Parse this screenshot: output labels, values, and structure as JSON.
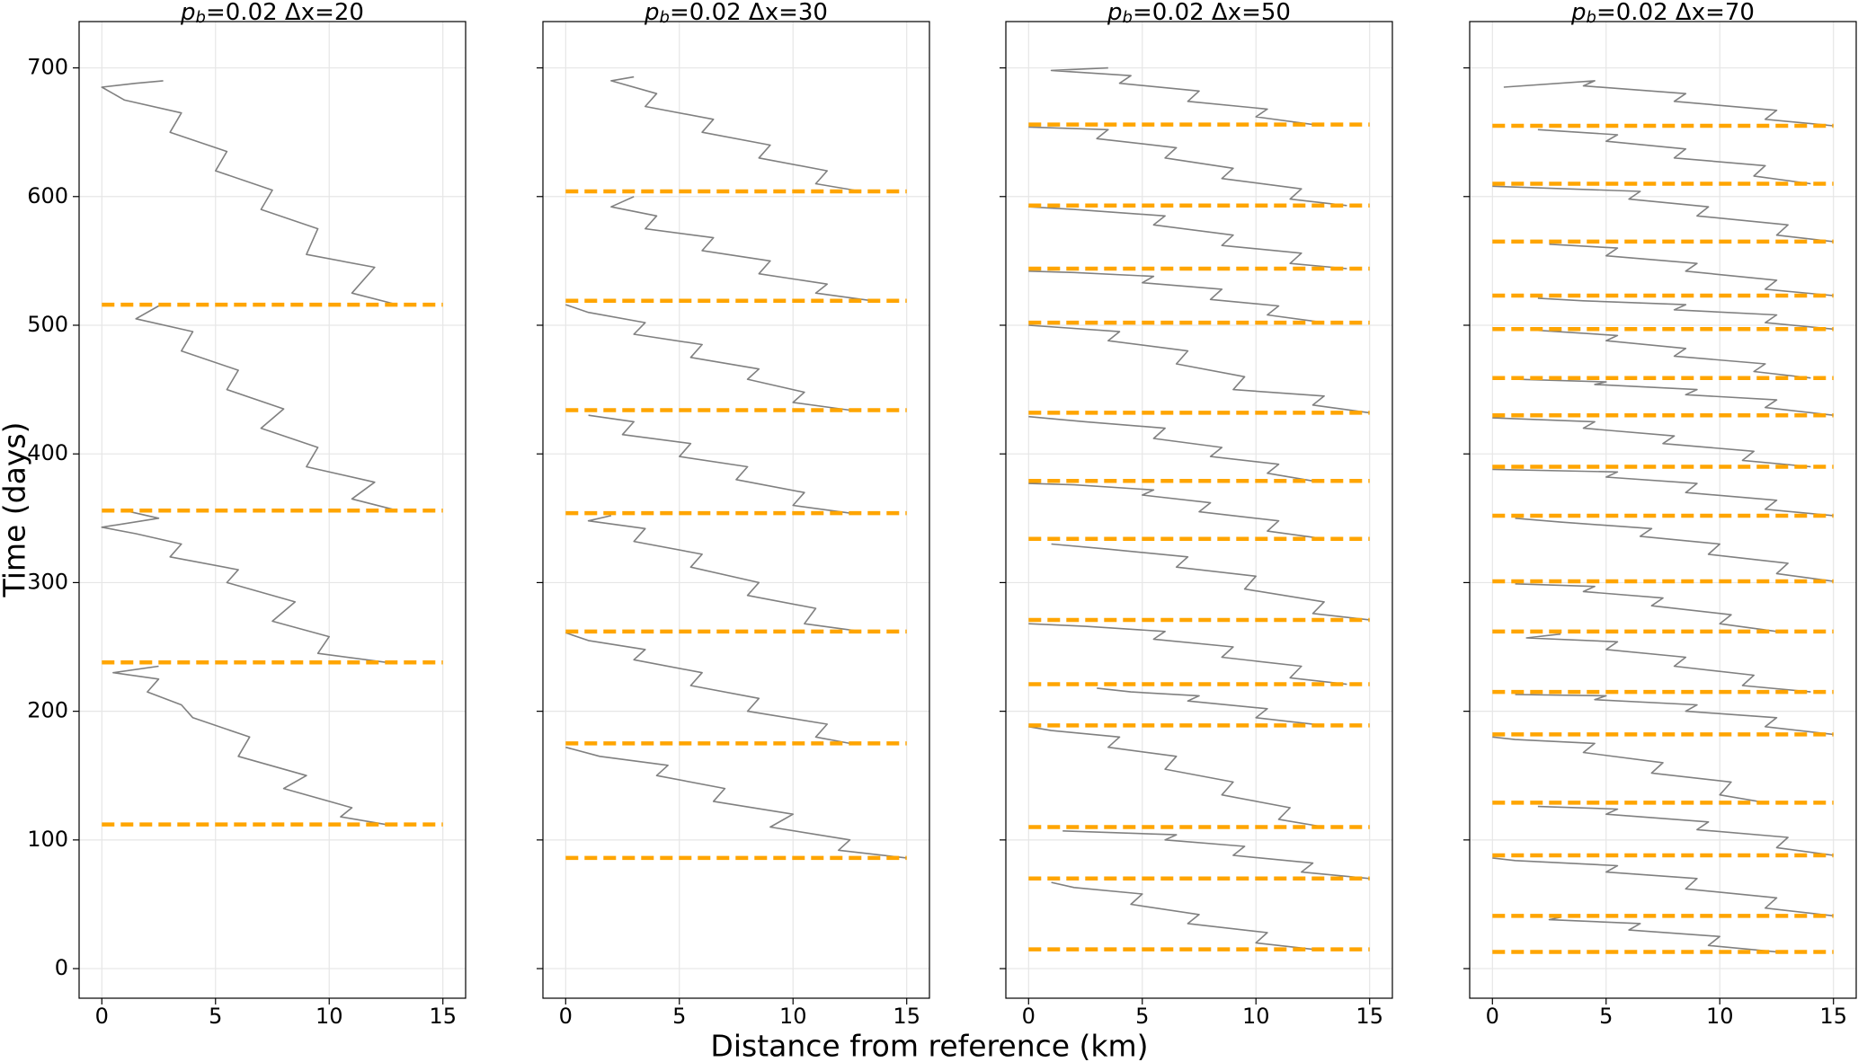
{
  "figure": {
    "xlabel": "Distance from reference (km)",
    "ylabel": "Time (days)"
  },
  "chart_data": [
    {
      "type": "line",
      "title": {
        "symbol": "p",
        "subscript": "b",
        "text": "=0.02 Δx=20"
      },
      "xlim": [
        -1,
        16
      ],
      "ylim": [
        -23,
        736
      ],
      "xticks": [
        0,
        5,
        10,
        15
      ],
      "yticks": [
        0,
        100,
        200,
        300,
        400,
        500,
        600,
        700
      ],
      "ytick_labels": true,
      "grid": true,
      "color": "#808080",
      "hline_color": "#ffa500",
      "hline_xlim": [
        0,
        15
      ],
      "hlines": [
        112,
        238,
        356,
        516
      ],
      "x": [
        12.5,
        10.5,
        11,
        8,
        9,
        6,
        6.5,
        4,
        3.5,
        2,
        2.5,
        0.5,
        2.5,
        null,
        12.5,
        9.5,
        10,
        7.5,
        8.5,
        5.5,
        6,
        3,
        3.5,
        1.5,
        0,
        2.5,
        1,
        null,
        13,
        11,
        12,
        9,
        9.5,
        7,
        8,
        5.5,
        6,
        3.5,
        4,
        1.5,
        2.5,
        null,
        13,
        11,
        12,
        9,
        9.5,
        7,
        7.5,
        5,
        5.5,
        3,
        3.5,
        1,
        0,
        1.5,
        2.7
      ],
      "values": [
        112,
        118,
        125,
        140,
        150,
        165,
        180,
        195,
        205,
        215,
        225,
        230,
        235,
        null,
        238,
        245,
        258,
        270,
        285,
        300,
        310,
        320,
        330,
        338,
        343,
        350,
        356,
        null,
        356,
        365,
        378,
        390,
        405,
        420,
        435,
        450,
        465,
        480,
        495,
        505,
        515,
        null,
        516,
        525,
        545,
        555,
        575,
        590,
        605,
        620,
        635,
        650,
        665,
        675,
        685,
        688,
        690
      ]
    },
    {
      "type": "line",
      "title": {
        "symbol": "p",
        "subscript": "b",
        "text": "=0.02 Δx=30"
      },
      "xlim": [
        -1,
        16
      ],
      "ylim": [
        -23,
        736
      ],
      "xticks": [
        0,
        5,
        10,
        15
      ],
      "yticks": [
        0,
        100,
        200,
        300,
        400,
        500,
        600,
        700
      ],
      "ytick_labels": false,
      "grid": true,
      "color": "#808080",
      "hline_color": "#ffa500",
      "hline_xlim": [
        0,
        15
      ],
      "hlines": [
        86,
        175,
        262,
        354,
        434,
        519,
        604
      ],
      "x": [
        15,
        12,
        12.5,
        9,
        10,
        6.5,
        7,
        4,
        4.5,
        1.5,
        0,
        null,
        12.5,
        11,
        11.5,
        8,
        8.5,
        5.5,
        6,
        3,
        3.5,
        1,
        0,
        null,
        13,
        10.5,
        11,
        8,
        8.5,
        5.5,
        6,
        3,
        3.5,
        1,
        2,
        null,
        12.5,
        10,
        10.5,
        7.5,
        8,
        5,
        5.5,
        2.5,
        3,
        1,
        null,
        12.5,
        10,
        10.5,
        8,
        8.5,
        5.5,
        6,
        3,
        3.5,
        1,
        0,
        null,
        13.5,
        11,
        11.5,
        8.5,
        9,
        6,
        6.5,
        3.5,
        4,
        2,
        3,
        null,
        13,
        11,
        11.5,
        8.5,
        9,
        6,
        6.5,
        3.5,
        4,
        2,
        3
      ],
      "values": [
        86,
        92,
        100,
        110,
        120,
        130,
        140,
        150,
        158,
        165,
        172,
        null,
        175,
        180,
        190,
        200,
        210,
        220,
        230,
        240,
        248,
        255,
        261,
        null,
        262,
        268,
        280,
        290,
        300,
        312,
        322,
        332,
        342,
        348,
        352,
        null,
        354,
        360,
        370,
        380,
        390,
        398,
        408,
        415,
        425,
        430,
        null,
        434,
        440,
        448,
        458,
        466,
        475,
        485,
        493,
        502,
        510,
        516,
        null,
        519,
        525,
        532,
        540,
        550,
        558,
        568,
        575,
        585,
        592,
        600,
        null,
        604,
        610,
        620,
        630,
        640,
        650,
        660,
        670,
        680,
        690,
        693
      ]
    },
    {
      "type": "line",
      "title": {
        "symbol": "p",
        "subscript": "b",
        "text": "=0.02 Δx=50"
      },
      "xlim": [
        -1,
        16
      ],
      "ylim": [
        -23,
        736
      ],
      "xticks": [
        0,
        5,
        10,
        15
      ],
      "yticks": [
        0,
        100,
        200,
        300,
        400,
        500,
        600,
        700
      ],
      "ytick_labels": false,
      "grid": true,
      "color": "#808080",
      "hline_color": "#ffa500",
      "hline_xlim": [
        0,
        15
      ],
      "hlines": [
        15,
        70,
        110,
        189,
        221,
        271,
        334,
        379,
        432,
        502,
        544,
        593,
        656
      ],
      "x": [
        12.5,
        10,
        10.5,
        7,
        7.5,
        4.5,
        5,
        2,
        1,
        null,
        15,
        12,
        12.5,
        9,
        9.5,
        6,
        6.5,
        1.5,
        null,
        13,
        11,
        11.5,
        8.5,
        9,
        6,
        6.5,
        3.5,
        4,
        1,
        0,
        null,
        13,
        10,
        10.5,
        7,
        7.5,
        4.5,
        3,
        null,
        14,
        11.5,
        12,
        8.5,
        9,
        5.5,
        6,
        2.5,
        0,
        null,
        15,
        12.5,
        13,
        9.5,
        10,
        6.5,
        7,
        3.5,
        1,
        null,
        13,
        10.5,
        11,
        7.5,
        8,
        5,
        5.5,
        2,
        0,
        null,
        12.5,
        10.5,
        11,
        8,
        8.5,
        5.5,
        6,
        2.5,
        0,
        null,
        15,
        12.5,
        13,
        9,
        9.5,
        6.5,
        7,
        3.5,
        4,
        0,
        null,
        13,
        10.5,
        11,
        8,
        8.5,
        5,
        5.5,
        2,
        0,
        null,
        14,
        11.5,
        12,
        8.5,
        9,
        5.5,
        6,
        2,
        0,
        null,
        14,
        11.5,
        12,
        8.5,
        9,
        6,
        6.5,
        3,
        3.5,
        0,
        null,
        12.5,
        10,
        10.5,
        7,
        7.5,
        4,
        4.5,
        1,
        3.5
      ],
      "values": [
        15,
        20,
        28,
        35,
        42,
        50,
        58,
        63,
        67,
        null,
        70,
        75,
        82,
        88,
        95,
        100,
        104,
        107,
        null,
        110,
        116,
        125,
        135,
        145,
        155,
        165,
        172,
        180,
        185,
        188,
        null,
        189,
        195,
        202,
        208,
        212,
        215,
        218,
        null,
        221,
        226,
        235,
        242,
        250,
        256,
        262,
        266,
        268,
        null,
        271,
        276,
        285,
        295,
        305,
        312,
        320,
        326,
        330,
        null,
        334,
        340,
        348,
        355,
        362,
        368,
        372,
        376,
        377,
        null,
        379,
        385,
        392,
        398,
        405,
        412,
        420,
        425,
        429,
        null,
        432,
        438,
        445,
        450,
        460,
        470,
        480,
        488,
        495,
        500,
        null,
        502,
        508,
        515,
        520,
        528,
        533,
        538,
        541,
        542,
        null,
        544,
        548,
        556,
        562,
        570,
        578,
        585,
        590,
        592,
        null,
        593,
        598,
        606,
        614,
        622,
        630,
        638,
        645,
        652,
        654,
        null,
        656,
        662,
        668,
        674,
        682,
        688,
        694,
        698,
        700
      ]
    },
    {
      "type": "line",
      "title": {
        "symbol": "p",
        "subscript": "b",
        "text": "=0.02 Δx=70"
      },
      "xlim": [
        -1,
        16
      ],
      "ylim": [
        -23,
        736
      ],
      "xticks": [
        0,
        5,
        10,
        15
      ],
      "yticks": [
        0,
        100,
        200,
        300,
        400,
        500,
        600,
        700
      ],
      "ytick_labels": false,
      "grid": true,
      "color": "#808080",
      "hline_color": "#ffa500",
      "hline_xlim": [
        0,
        15
      ],
      "hlines": [
        13,
        41,
        88,
        129,
        182,
        215,
        262,
        301,
        352,
        390,
        430,
        459,
        497,
        523,
        565,
        610,
        655
      ],
      "x": [
        12.5,
        9.5,
        10,
        6,
        6.5,
        2.5,
        3,
        null,
        15,
        12,
        12.5,
        8.5,
        9,
        5,
        5.5,
        1,
        0,
        null,
        15,
        12.5,
        13,
        9,
        9.5,
        5,
        5.5,
        2,
        null,
        12,
        10,
        10.5,
        7,
        7.5,
        4,
        4.5,
        1,
        0,
        null,
        15,
        12,
        12.5,
        8.5,
        9,
        4.5,
        5,
        1,
        null,
        14,
        11,
        11.5,
        8,
        8.5,
        5,
        5.5,
        1.5,
        3,
        null,
        12.5,
        10,
        10.5,
        7,
        7.5,
        4,
        4.5,
        1,
        null,
        15,
        12.5,
        13,
        9.5,
        10,
        6.5,
        7,
        3,
        1,
        null,
        15,
        12,
        12.5,
        8.5,
        9,
        5,
        5.5,
        0,
        null,
        14,
        11,
        11.5,
        7.5,
        8,
        4,
        4.5,
        0,
        null,
        15,
        12,
        12.5,
        8.5,
        9,
        4.5,
        5,
        1,
        null,
        14,
        11.5,
        12,
        8,
        8.5,
        5,
        5.5,
        2,
        null,
        15,
        12,
        12.5,
        8,
        8.5,
        4,
        2,
        null,
        15,
        12,
        12.5,
        8.5,
        9,
        5,
        5.5,
        2.5,
        null,
        15,
        12.5,
        13,
        9,
        9.5,
        6,
        6.5,
        0,
        null,
        14,
        11.5,
        12,
        8,
        8.5,
        5,
        5.5,
        2,
        null,
        15,
        12,
        12.5,
        8,
        8.5,
        4,
        4.5,
        0.5
      ],
      "values": [
        13,
        18,
        25,
        30,
        35,
        38,
        40,
        null,
        41,
        47,
        55,
        62,
        70,
        75,
        80,
        84,
        86,
        null,
        88,
        94,
        102,
        108,
        114,
        120,
        124,
        126,
        null,
        129,
        135,
        145,
        152,
        160,
        168,
        175,
        178,
        180,
        null,
        182,
        188,
        195,
        200,
        205,
        209,
        212,
        213,
        null,
        215,
        220,
        228,
        235,
        242,
        248,
        254,
        257,
        260,
        null,
        262,
        268,
        275,
        282,
        288,
        293,
        297,
        299,
        null,
        301,
        307,
        315,
        322,
        330,
        336,
        342,
        347,
        350,
        null,
        352,
        357,
        364,
        370,
        377,
        382,
        386,
        388,
        null,
        390,
        395,
        402,
        408,
        414,
        420,
        425,
        428,
        null,
        430,
        436,
        442,
        446,
        450,
        454,
        456,
        458,
        null,
        459,
        464,
        470,
        476,
        482,
        488,
        492,
        496,
        null,
        497,
        502,
        508,
        512,
        516,
        519,
        521,
        null,
        523,
        528,
        535,
        542,
        548,
        554,
        560,
        563,
        null,
        565,
        570,
        578,
        585,
        592,
        598,
        604,
        608,
        null,
        610,
        616,
        624,
        630,
        637,
        643,
        648,
        652,
        null,
        655,
        660,
        667,
        674,
        680,
        686,
        690,
        685
      ]
    }
  ]
}
